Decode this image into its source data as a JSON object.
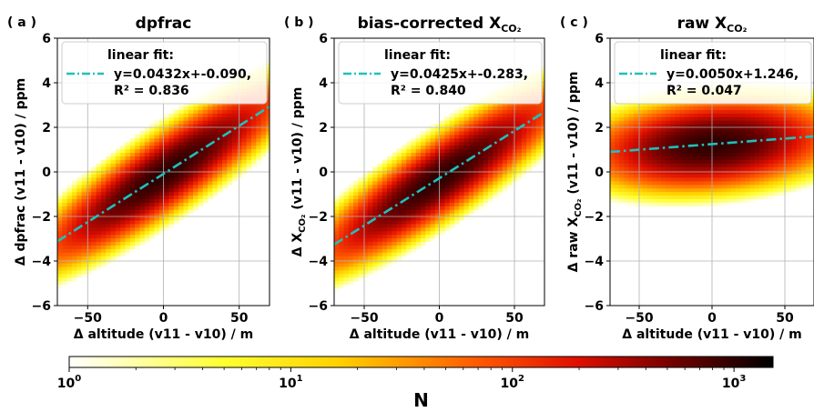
{
  "chart_data": [
    {
      "type": "heatmap",
      "panel_label": "( a )",
      "title": "dpfrac",
      "title_sub": "",
      "xlabel": "Δ altitude (v11 - v10) / m",
      "ylabel_pre": "Δ dpfrac (v11 - v10) / ppm",
      "ylabel_sub": "",
      "ylabel_post": "",
      "xlim": [
        -70,
        70
      ],
      "ylim": [
        -6,
        6
      ],
      "xticks": [
        -50,
        0,
        50
      ],
      "xtick_labels": [
        "−50",
        "0",
        "50"
      ],
      "yticks": [
        -6,
        -4,
        -2,
        0,
        2,
        4,
        6
      ],
      "ytick_labels": [
        "−6",
        "−4",
        "−2",
        "0",
        "2",
        "4",
        "6"
      ],
      "grid": true,
      "legend": {
        "title": "linear fit:",
        "line1": "y=0.0432x+-0.090,",
        "line2": "R² = 0.836",
        "placement": "top-left"
      },
      "fit": {
        "slope": 0.0432,
        "intercept": -0.09,
        "r2": 0.836,
        "color": "#1ec0c0",
        "style": "dash-dot"
      },
      "density": {
        "spread_x": 32,
        "spread_y": 0.7,
        "core_n": 1000
      }
    },
    {
      "type": "heatmap",
      "panel_label": "( b )",
      "title": "bias-corrected X",
      "title_sub": "CO₂",
      "xlabel": "Δ altitude (v11 - v10) / m",
      "ylabel_pre": "Δ X",
      "ylabel_sub": "CO₂",
      "ylabel_post": " (v11 - v10) / ppm",
      "xlim": [
        -70,
        70
      ],
      "ylim": [
        -6,
        6
      ],
      "xticks": [
        -50,
        0,
        50
      ],
      "xtick_labels": [
        "−50",
        "0",
        "50"
      ],
      "yticks": [
        -6,
        -4,
        -2,
        0,
        2,
        4,
        6
      ],
      "ytick_labels": [
        "−6",
        "−4",
        "−2",
        "0",
        "2",
        "4",
        "6"
      ],
      "grid": true,
      "legend": {
        "title": "linear fit:",
        "line1": "y=0.0425x+-0.283,",
        "line2": "R² = 0.840",
        "placement": "top-left"
      },
      "fit": {
        "slope": 0.0425,
        "intercept": -0.283,
        "r2": 0.84,
        "color": "#1ec0c0",
        "style": "dash-dot"
      },
      "density": {
        "spread_x": 32,
        "spread_y": 0.7,
        "core_n": 1000
      }
    },
    {
      "type": "heatmap",
      "panel_label": "( c )",
      "title": "raw X",
      "title_sub": "CO₂",
      "xlabel": "Δ altitude (v11 - v10) / m",
      "ylabel_pre": "Δ raw X",
      "ylabel_sub": "CO₂",
      "ylabel_post": " (v11 - v10) / ppm",
      "xlim": [
        -70,
        70
      ],
      "ylim": [
        -6,
        6
      ],
      "xticks": [
        -50,
        0,
        50
      ],
      "xtick_labels": [
        "−50",
        "0",
        "50"
      ],
      "yticks": [
        -6,
        -4,
        -2,
        0,
        2,
        4,
        6
      ],
      "ytick_labels": [
        "−6",
        "−4",
        "−2",
        "0",
        "2",
        "4",
        "6"
      ],
      "grid": true,
      "legend": {
        "title": "linear fit:",
        "line1": "y=0.0050x+1.246,",
        "line2": "R² = 0.047",
        "placement": "top-left"
      },
      "fit": {
        "slope": 0.005,
        "intercept": 1.246,
        "r2": 0.047,
        "color": "#1ec0c0",
        "style": "dash-dot"
      },
      "density": {
        "spread_x": 32,
        "spread_y": 0.75,
        "core_n": 1000
      }
    }
  ],
  "colorbar": {
    "label": "N",
    "scale": "log",
    "range": [
      1,
      1500
    ],
    "ticks": [
      1,
      10,
      100,
      1000
    ],
    "tick_labels": [
      {
        "base": "10",
        "exp": "0"
      },
      {
        "base": "10",
        "exp": "1"
      },
      {
        "base": "10",
        "exp": "2"
      },
      {
        "base": "10",
        "exp": "3"
      }
    ],
    "colormap": "hot_r",
    "orientation": "horizontal"
  }
}
